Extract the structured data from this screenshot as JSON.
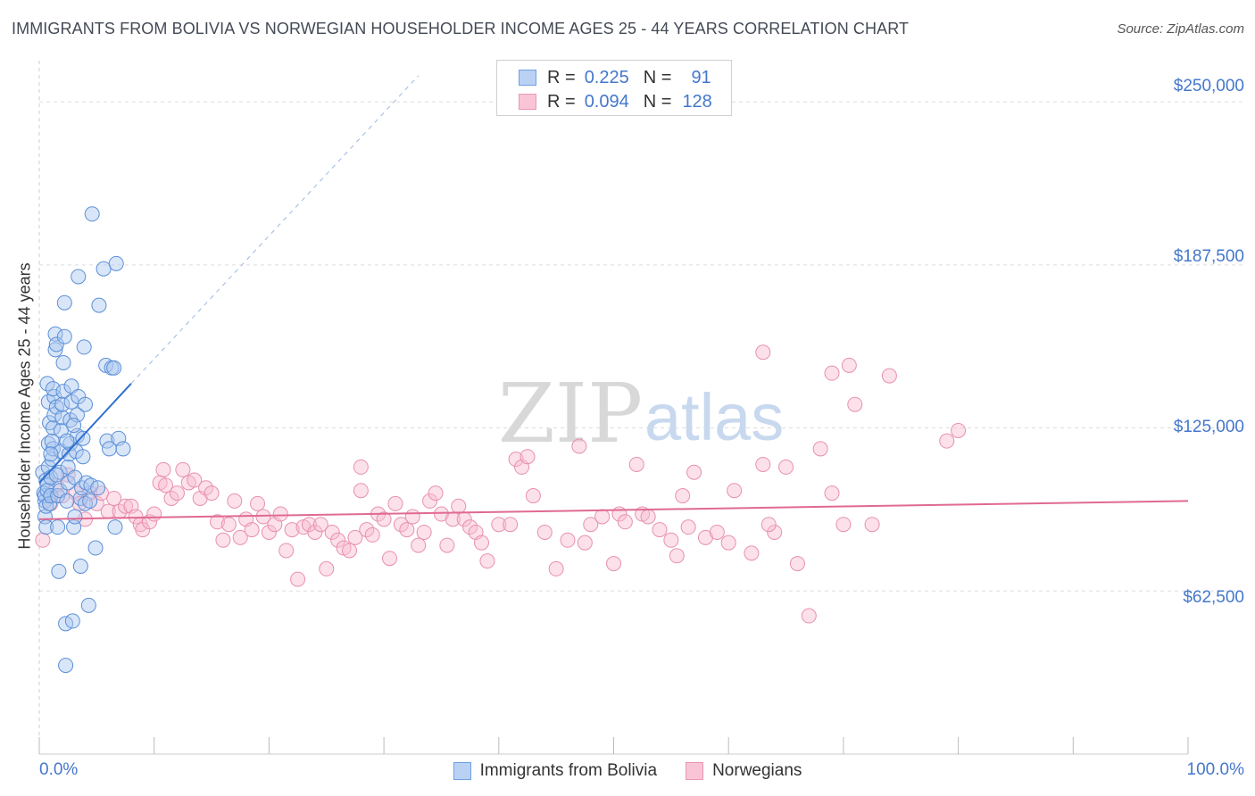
{
  "header": {
    "title": "IMMIGRANTS FROM BOLIVIA VS NORWEGIAN HOUSEHOLDER INCOME AGES 25 - 44 YEARS CORRELATION CHART",
    "source": "Source: ZipAtlas.com"
  },
  "legend": {
    "r_label": "R =",
    "n_label": "N =",
    "rows": [
      {
        "r": "0.225",
        "n": "91"
      },
      {
        "r": "0.094",
        "n": "128"
      }
    ]
  },
  "watermark": {
    "zip": "ZIP",
    "atlas": "atlas"
  },
  "colors": {
    "blue_fill": "#aac8f0",
    "blue_stroke": "#5b8fd8",
    "blue_line": "#2f6fd0",
    "pink_fill": "#f8bcd0",
    "pink_stroke": "#e890b0",
    "pink_line": "#e06a92",
    "grid": "#dddddd",
    "axis_text": "#4477cc"
  },
  "chart_data": {
    "type": "scatter",
    "title": "IMMIGRANTS FROM BOLIVIA VS NORWEGIAN HOUSEHOLDER INCOME AGES 25 - 44 YEARS CORRELATION CHART",
    "xlabel": "",
    "ylabel": "Householder Income Ages 25 - 44 years",
    "xlim": [
      0,
      100
    ],
    "ylim": [
      0,
      262000
    ],
    "x_tick_labels": [
      "0.0%",
      "100.0%"
    ],
    "y_ticks": [
      62500,
      125000,
      187500,
      250000
    ],
    "y_tick_labels": [
      "$62,500",
      "$125,000",
      "$187,500",
      "$250,000"
    ],
    "legend_position": "top-center",
    "series": [
      {
        "name": "Immigrants from Bolivia",
        "r": 0.225,
        "n": 91,
        "trend": {
          "x0": 0,
          "y0": 104000,
          "x1": 8,
          "y1": 142000,
          "dashed_to_x": 33,
          "dashed_to_y": 260000
        },
        "points": [
          [
            0.3,
            108000
          ],
          [
            0.4,
            100000
          ],
          [
            0.5,
            97000
          ],
          [
            0.5,
            91000
          ],
          [
            0.6,
            87000
          ],
          [
            0.5,
            99000
          ],
          [
            0.6,
            105000
          ],
          [
            0.7,
            103000
          ],
          [
            0.6,
            95000
          ],
          [
            0.7,
            101000
          ],
          [
            0.8,
            110000
          ],
          [
            0.8,
            119000
          ],
          [
            0.9,
            127000
          ],
          [
            0.8,
            135000
          ],
          [
            0.7,
            142000
          ],
          [
            0.9,
            96000
          ],
          [
            1.0,
            99000
          ],
          [
            1.0,
            106000
          ],
          [
            1.1,
            113000
          ],
          [
            1.2,
            117000
          ],
          [
            1.1,
            120000
          ],
          [
            1.2,
            125000
          ],
          [
            1.3,
            130000
          ],
          [
            1.3,
            137000
          ],
          [
            1.2,
            140000
          ],
          [
            1.4,
            155000
          ],
          [
            1.4,
            161000
          ],
          [
            1.5,
            157000
          ],
          [
            1.5,
            133000
          ],
          [
            1.6,
            99000
          ],
          [
            1.6,
            87000
          ],
          [
            1.7,
            70000
          ],
          [
            1.8,
            101000
          ],
          [
            1.8,
            108000
          ],
          [
            1.9,
            116000
          ],
          [
            1.9,
            124000
          ],
          [
            2.0,
            129000
          ],
          [
            2.1,
            139000
          ],
          [
            2.0,
            134000
          ],
          [
            2.1,
            150000
          ],
          [
            2.2,
            160000
          ],
          [
            2.2,
            173000
          ],
          [
            2.3,
            50000
          ],
          [
            2.3,
            34000
          ],
          [
            2.4,
            97000
          ],
          [
            2.5,
            104000
          ],
          [
            2.5,
            110000
          ],
          [
            2.6,
            115000
          ],
          [
            2.7,
            119000
          ],
          [
            2.7,
            128000
          ],
          [
            2.8,
            135000
          ],
          [
            2.8,
            141000
          ],
          [
            2.9,
            51000
          ],
          [
            3.0,
            87000
          ],
          [
            3.1,
            91000
          ],
          [
            3.1,
            106000
          ],
          [
            3.2,
            116000
          ],
          [
            3.3,
            122000
          ],
          [
            3.3,
            130000
          ],
          [
            3.4,
            137000
          ],
          [
            3.4,
            183000
          ],
          [
            3.6,
            72000
          ],
          [
            3.6,
            98000
          ],
          [
            3.7,
            102000
          ],
          [
            3.8,
            114000
          ],
          [
            3.8,
            121000
          ],
          [
            3.9,
            156000
          ],
          [
            4.0,
            134000
          ],
          [
            4.0,
            96000
          ],
          [
            4.1,
            104000
          ],
          [
            4.3,
            57000
          ],
          [
            4.4,
            97000
          ],
          [
            4.5,
            103000
          ],
          [
            4.6,
            207000
          ],
          [
            4.9,
            79000
          ],
          [
            5.1,
            102000
          ],
          [
            5.2,
            172000
          ],
          [
            5.6,
            186000
          ],
          [
            5.8,
            149000
          ],
          [
            5.9,
            120000
          ],
          [
            6.1,
            117000
          ],
          [
            6.3,
            148000
          ],
          [
            6.5,
            148000
          ],
          [
            6.6,
            87000
          ],
          [
            6.7,
            188000
          ],
          [
            6.9,
            121000
          ],
          [
            7.3,
            117000
          ],
          [
            1.0,
            115000
          ],
          [
            2.4,
            120000
          ],
          [
            3.0,
            126000
          ],
          [
            1.5,
            107000
          ]
        ]
      },
      {
        "name": "Norwegians",
        "r": 0.094,
        "n": 128,
        "trend": {
          "x0": 0,
          "y0": 90000,
          "x1": 100,
          "y1": 97000
        },
        "points": [
          [
            0.3,
            82000
          ],
          [
            1.0,
            96000
          ],
          [
            1.5,
            103000
          ],
          [
            2.0,
            99000
          ],
          [
            2.5,
            107000
          ],
          [
            3.2,
            100000
          ],
          [
            3.5,
            96000
          ],
          [
            4.0,
            90000
          ],
          [
            4.4,
            100000
          ],
          [
            5.0,
            96000
          ],
          [
            5.4,
            100000
          ],
          [
            6.0,
            93000
          ],
          [
            6.5,
            98000
          ],
          [
            7.0,
            93000
          ],
          [
            7.5,
            95000
          ],
          [
            8.0,
            95000
          ],
          [
            8.4,
            91000
          ],
          [
            8.8,
            88000
          ],
          [
            9.0,
            86000
          ],
          [
            9.6,
            89000
          ],
          [
            10.0,
            92000
          ],
          [
            10.5,
            104000
          ],
          [
            10.8,
            109000
          ],
          [
            11.0,
            103000
          ],
          [
            11.5,
            98000
          ],
          [
            12.0,
            100000
          ],
          [
            12.5,
            109000
          ],
          [
            13.0,
            104000
          ],
          [
            13.5,
            105000
          ],
          [
            14.0,
            98000
          ],
          [
            14.5,
            102000
          ],
          [
            15.0,
            100000
          ],
          [
            15.5,
            89000
          ],
          [
            16.0,
            82000
          ],
          [
            16.5,
            88000
          ],
          [
            17.0,
            97000
          ],
          [
            17.5,
            83000
          ],
          [
            18.0,
            90000
          ],
          [
            18.5,
            86000
          ],
          [
            19.0,
            96000
          ],
          [
            19.5,
            91000
          ],
          [
            20.0,
            85000
          ],
          [
            20.5,
            88000
          ],
          [
            21.0,
            92000
          ],
          [
            21.5,
            78000
          ],
          [
            22.0,
            86000
          ],
          [
            22.5,
            67000
          ],
          [
            23.0,
            87000
          ],
          [
            23.5,
            88000
          ],
          [
            24.0,
            85000
          ],
          [
            24.5,
            88000
          ],
          [
            25.0,
            71000
          ],
          [
            25.5,
            85000
          ],
          [
            26.0,
            82000
          ],
          [
            26.5,
            79000
          ],
          [
            27.0,
            78000
          ],
          [
            27.5,
            83000
          ],
          [
            28.0,
            101000
          ],
          [
            28.5,
            86000
          ],
          [
            29.0,
            84000
          ],
          [
            29.5,
            92000
          ],
          [
            30.0,
            90000
          ],
          [
            30.5,
            75000
          ],
          [
            31.0,
            96000
          ],
          [
            31.5,
            88000
          ],
          [
            32.0,
            86000
          ],
          [
            32.5,
            91000
          ],
          [
            33.0,
            80000
          ],
          [
            33.5,
            85000
          ],
          [
            34.0,
            97000
          ],
          [
            34.5,
            100000
          ],
          [
            35.0,
            92000
          ],
          [
            35.5,
            80000
          ],
          [
            36.0,
            90000
          ],
          [
            36.5,
            95000
          ],
          [
            37.0,
            90000
          ],
          [
            37.5,
            87000
          ],
          [
            38.0,
            85000
          ],
          [
            38.5,
            81000
          ],
          [
            39.0,
            74000
          ],
          [
            40.0,
            88000
          ],
          [
            41.0,
            88000
          ],
          [
            41.5,
            113000
          ],
          [
            42.0,
            110000
          ],
          [
            43.0,
            99000
          ],
          [
            44.0,
            85000
          ],
          [
            45.0,
            71000
          ],
          [
            46.0,
            82000
          ],
          [
            47.0,
            118000
          ],
          [
            47.5,
            81000
          ],
          [
            48.0,
            88000
          ],
          [
            49.0,
            91000
          ],
          [
            50.0,
            73000
          ],
          [
            50.5,
            92000
          ],
          [
            51.0,
            89000
          ],
          [
            52.0,
            111000
          ],
          [
            52.5,
            92000
          ],
          [
            53.0,
            91000
          ],
          [
            54.0,
            86000
          ],
          [
            55.0,
            82000
          ],
          [
            55.5,
            76000
          ],
          [
            56.0,
            99000
          ],
          [
            56.5,
            87000
          ],
          [
            57.0,
            108000
          ],
          [
            58.0,
            83000
          ],
          [
            59.0,
            85000
          ],
          [
            60.0,
            81000
          ],
          [
            60.5,
            101000
          ],
          [
            62.0,
            77000
          ],
          [
            63.0,
            111000
          ],
          [
            64.0,
            85000
          ],
          [
            63.5,
            88000
          ],
          [
            65.0,
            110000
          ],
          [
            66.0,
            73000
          ],
          [
            67.0,
            53000
          ],
          [
            68.0,
            117000
          ],
          [
            69.0,
            100000
          ],
          [
            70.0,
            88000
          ],
          [
            71.0,
            134000
          ],
          [
            72.5,
            88000
          ],
          [
            74.0,
            145000
          ],
          [
            79.0,
            120000
          ],
          [
            80.0,
            124000
          ],
          [
            63.0,
            154000
          ],
          [
            69.0,
            146000
          ],
          [
            70.5,
            149000
          ],
          [
            42.5,
            114000
          ],
          [
            28.0,
            110000
          ]
        ]
      }
    ]
  },
  "bottom_legend": {
    "items": [
      {
        "label": "Immigrants from Bolivia"
      },
      {
        "label": "Norwegians"
      }
    ]
  },
  "axes": {
    "x_left_label": "0.0%",
    "x_right_label": "100.0%",
    "y_axis_label": "Householder Income Ages 25 - 44 years",
    "y_tick_labels": [
      "$250,000",
      "$187,500",
      "$125,000",
      "$62,500"
    ]
  }
}
